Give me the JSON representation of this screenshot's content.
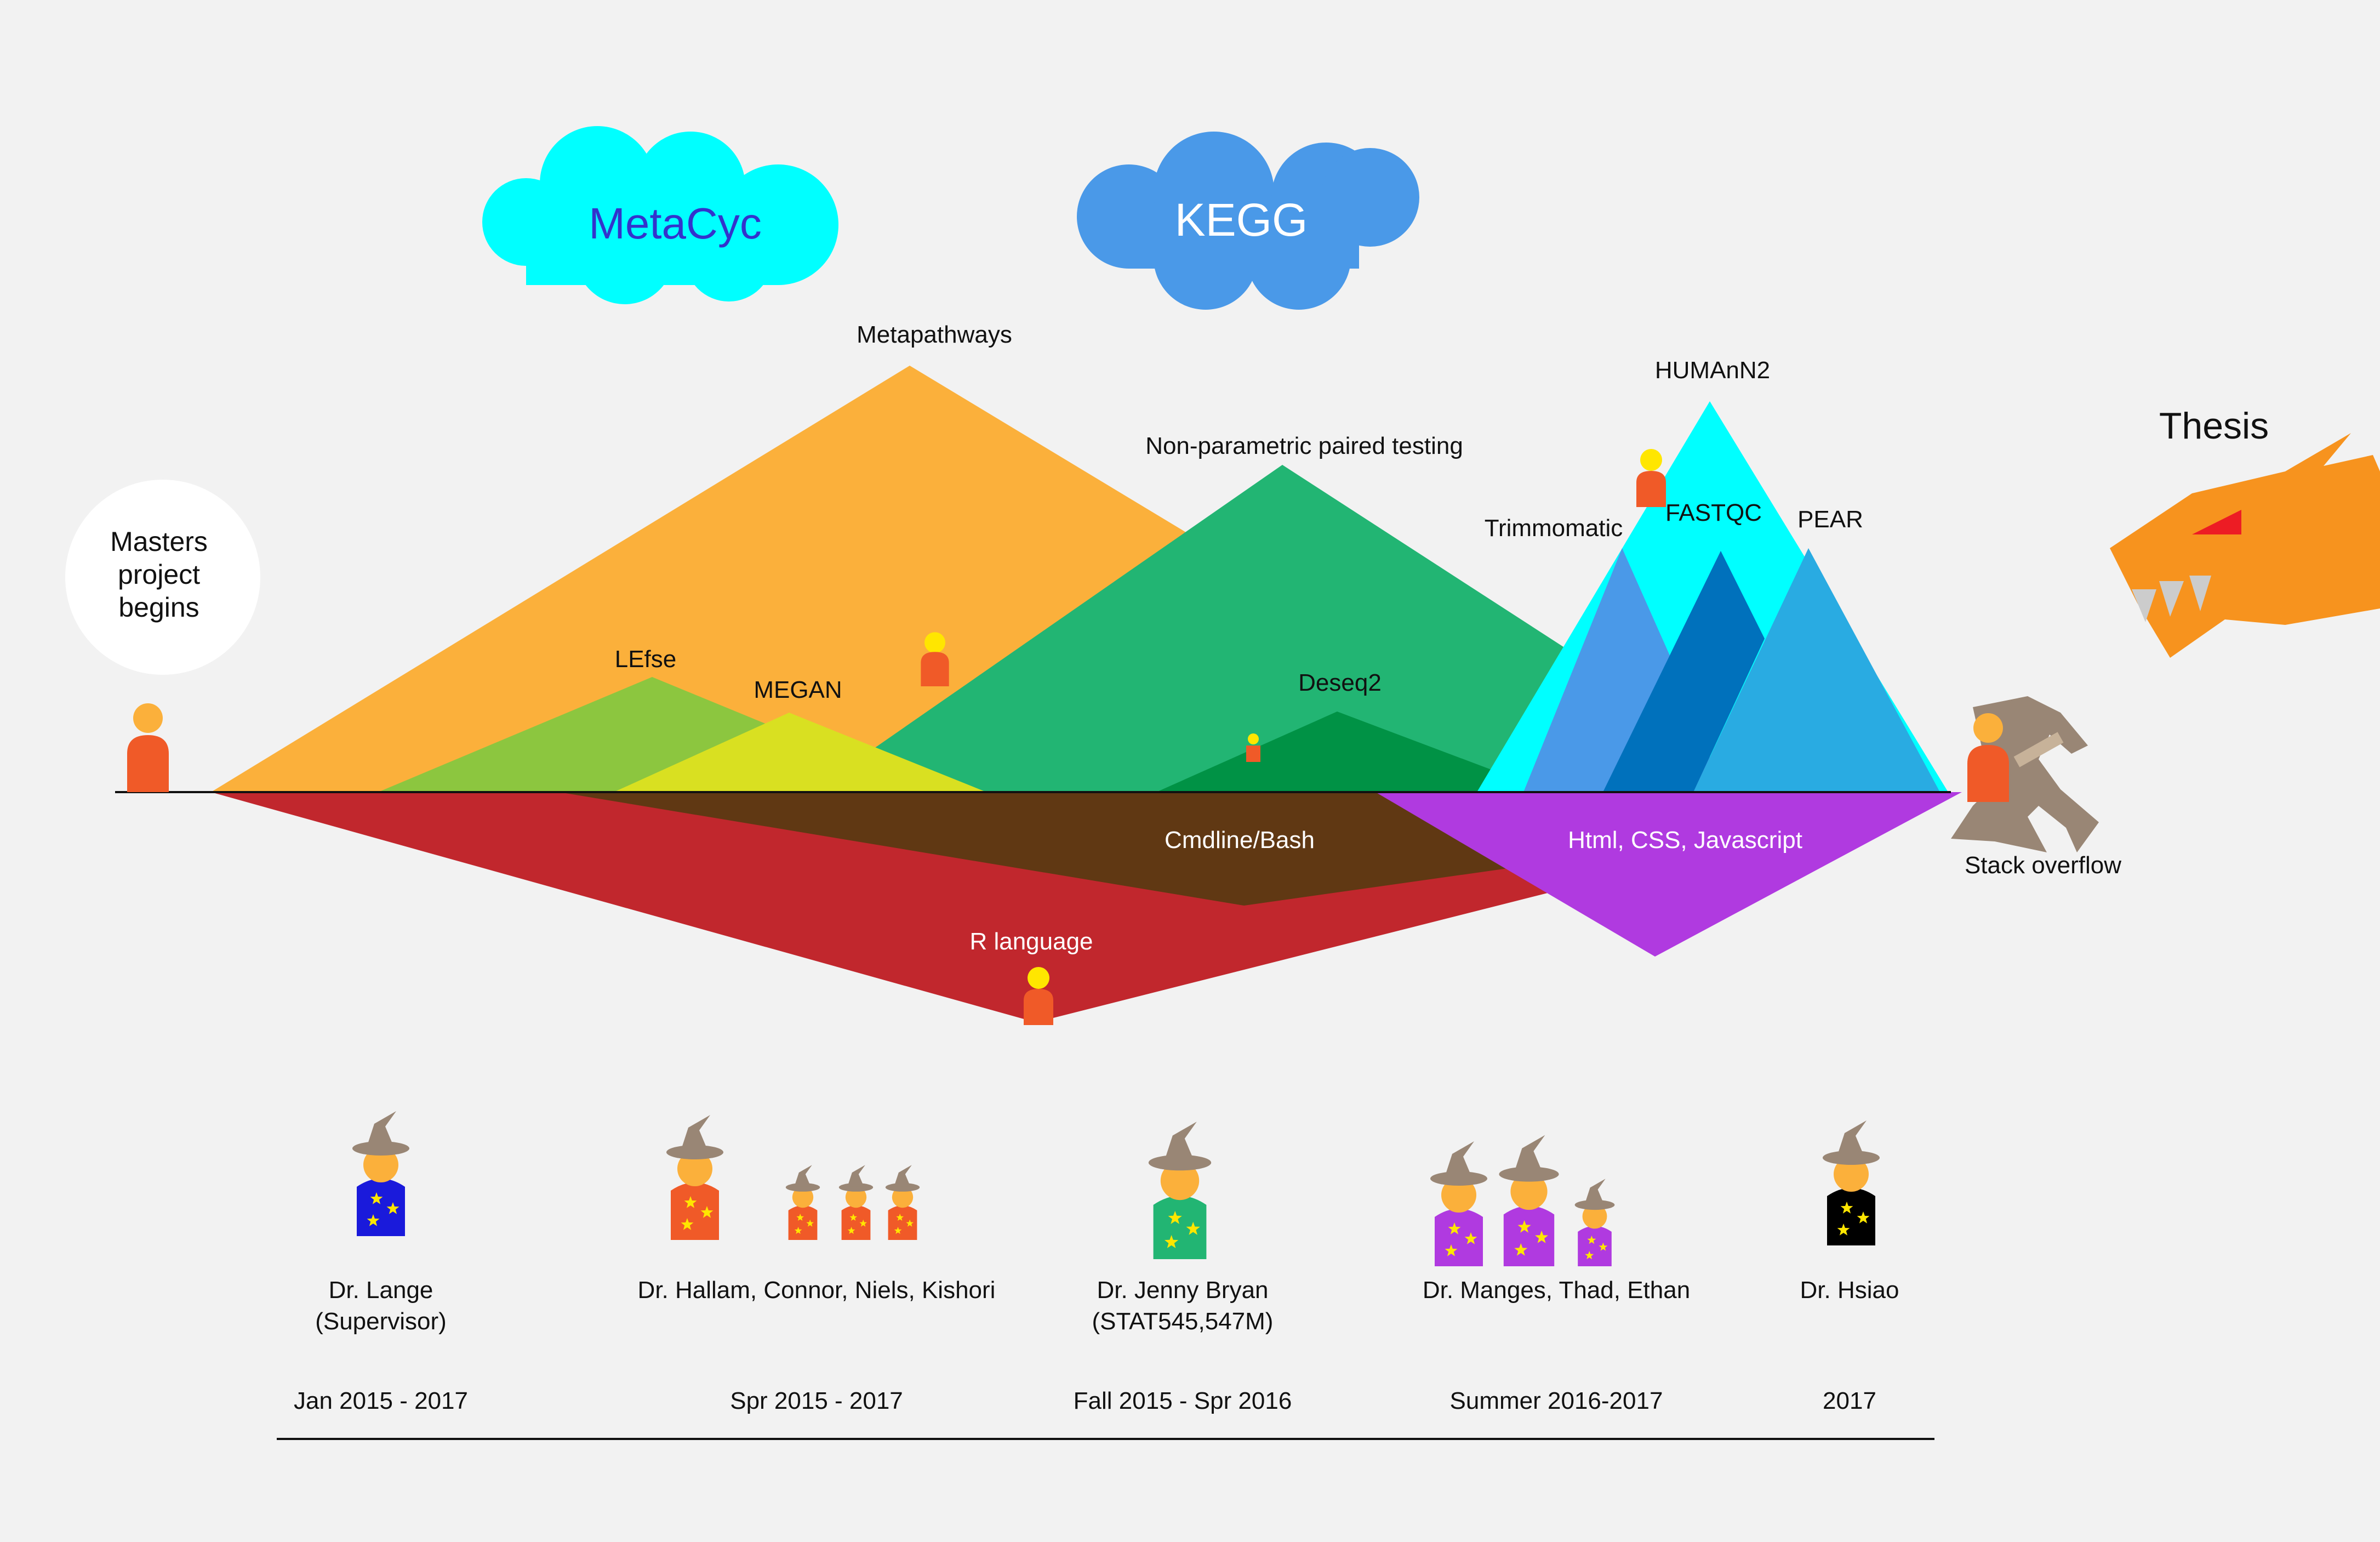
{
  "clouds": {
    "metacyc": {
      "label": "MetaCyc",
      "color": "#00ffff",
      "text_color": "#3333cc"
    },
    "kegg": {
      "label": "KEGG",
      "color": "#4a99e8",
      "text_color": "#ffffff"
    }
  },
  "start": {
    "line1": "Masters",
    "line2": "project",
    "line3": "begins"
  },
  "goal": {
    "label": "Thesis"
  },
  "mountains": {
    "metapathways": "Metapathways",
    "nonparam": "Non-parametric paired testing",
    "lefse": "LEfse",
    "megan": "MEGAN",
    "deseq2": "Deseq2",
    "humann2": "HUMAnN2",
    "trimmomatic": "Trimmomatic",
    "fastqc": "FASTQC",
    "pear": "PEAR"
  },
  "valleys": {
    "cmdline": "Cmdline/Bash",
    "r_language": "R language",
    "web": "Html, CSS, Javascript"
  },
  "dragon_slayer": {
    "label": "Stack overflow"
  },
  "mentors": [
    {
      "names_line1": "Dr. Lange",
      "names_line2": "(Supervisor)",
      "period": "Jan 2015 - 2017",
      "robe_color": "#1a1adb"
    },
    {
      "names_line1": "Dr. Hallam, Connor, Niels, Kishori",
      "names_line2": "",
      "period": "Spr 2015 - 2017",
      "robe_color": "#f05a28"
    },
    {
      "names_line1": "Dr. Jenny Bryan",
      "names_line2": "(STAT545,547M)",
      "period": "Fall 2015 - Spr 2016",
      "robe_color": "#22b573"
    },
    {
      "names_line1": "Dr. Manges, Thad, Ethan",
      "names_line2": "",
      "period": "Summer 2016-2017",
      "robe_color": "#b03ae0"
    },
    {
      "names_line1": "Dr. Hsiao",
      "names_line2": "",
      "period": "2017",
      "robe_color": "#000000"
    }
  ]
}
